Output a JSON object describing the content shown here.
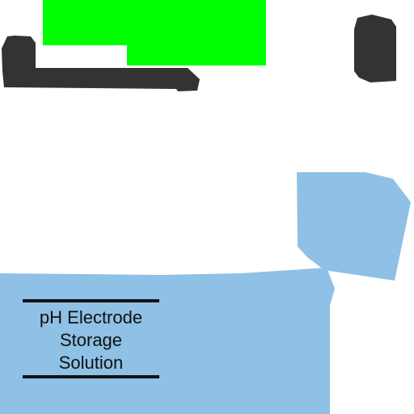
{
  "label": {
    "lines": [
      "pH Electrode",
      "Storage",
      "Solution"
    ]
  },
  "colors": {
    "background": "#ffffff",
    "liquid": "#8fc0e6",
    "tab": "#00ff00",
    "dark_object": "#333333",
    "text": "#111111"
  },
  "icons": {
    "dark_object_left": "dark-bar-shape",
    "dark_object_right": "dark-rounded-block-shape",
    "green_tab": "green-tab-shape"
  }
}
